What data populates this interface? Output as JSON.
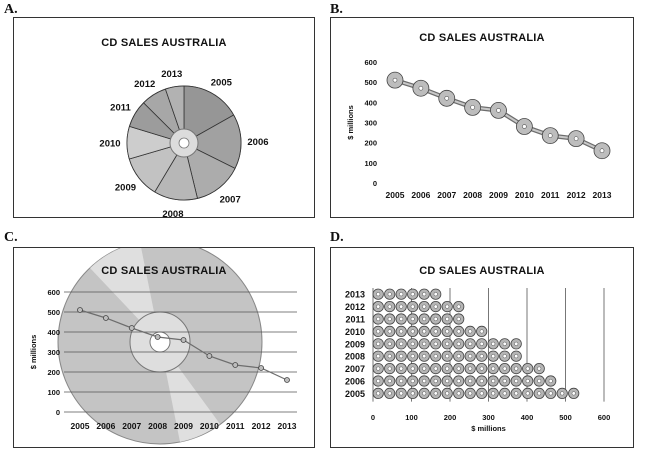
{
  "panel_letters": [
    "A.",
    "B.",
    "C.",
    "D."
  ],
  "colors": {
    "line": "#9a9a9a",
    "disc": "#b9b9b9",
    "grid": "#555555"
  },
  "chart_data": [
    {
      "type": "pie",
      "title": "CD SALES AUSTRALIA",
      "categories": [
        "2005",
        "2006",
        "2007",
        "2008",
        "2009",
        "2010",
        "2011",
        "2012",
        "2013"
      ],
      "values": [
        510,
        470,
        420,
        375,
        360,
        280,
        235,
        220,
        160
      ]
    },
    {
      "type": "line",
      "title": "CD SALES AUSTRALIA",
      "categories": [
        "2005",
        "2006",
        "2007",
        "2008",
        "2009",
        "2010",
        "2011",
        "2012",
        "2013"
      ],
      "values": [
        510,
        470,
        420,
        375,
        360,
        280,
        235,
        220,
        160
      ],
      "ylabel": "$ millions",
      "ylim": [
        0,
        600
      ],
      "yticks": [
        "0",
        "100",
        "200",
        "300",
        "400",
        "500",
        "600"
      ],
      "grid": false
    },
    {
      "type": "line",
      "title": "CD SALES AUSTRALIA",
      "categories": [
        "2005",
        "2006",
        "2007",
        "2008",
        "2009",
        "2010",
        "2011",
        "2012",
        "2013"
      ],
      "values": [
        510,
        470,
        420,
        375,
        360,
        280,
        235,
        220,
        160
      ],
      "ylabel": "$ millions",
      "ylim": [
        0,
        600
      ],
      "yticks": [
        "0",
        "100",
        "200",
        "300",
        "400",
        "500",
        "600"
      ],
      "grid": true
    },
    {
      "type": "bar",
      "orientation": "horizontal",
      "title": "CD SALES AUSTRALIA",
      "categories": [
        "2013",
        "2012",
        "2011",
        "2010",
        "2009",
        "2008",
        "2007",
        "2006",
        "2005"
      ],
      "values": [
        160,
        220,
        235,
        280,
        360,
        375,
        420,
        470,
        510
      ],
      "xlabel": "$ millions",
      "xlim": [
        0,
        600
      ],
      "xticks": [
        "0",
        "100",
        "200",
        "300",
        "400",
        "500",
        "600"
      ],
      "grid": true
    }
  ]
}
